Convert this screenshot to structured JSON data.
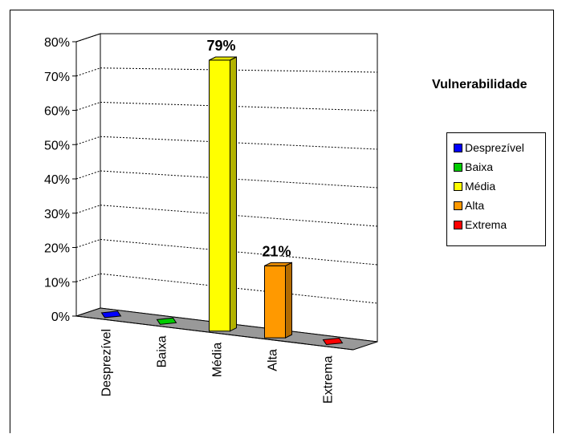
{
  "chart_data": {
    "type": "bar",
    "title": "Vulnerabilidade",
    "categories": [
      "Desprezível",
      "Baixa",
      "Média",
      "Alta",
      "Extrema"
    ],
    "values": [
      0,
      0,
      79,
      21,
      0
    ],
    "data_labels": [
      "",
      "",
      "79%",
      "21%",
      ""
    ],
    "colors": [
      "#0000ff",
      "#00cc00",
      "#ffff00",
      "#ff9900",
      "#ff0000"
    ],
    "y_ticks": [
      "0%",
      "10%",
      "20%",
      "30%",
      "40%",
      "50%",
      "60%",
      "70%",
      "80%"
    ],
    "ylim": [
      0,
      80
    ],
    "grid": true,
    "legend_position": "right",
    "style": "3d"
  }
}
